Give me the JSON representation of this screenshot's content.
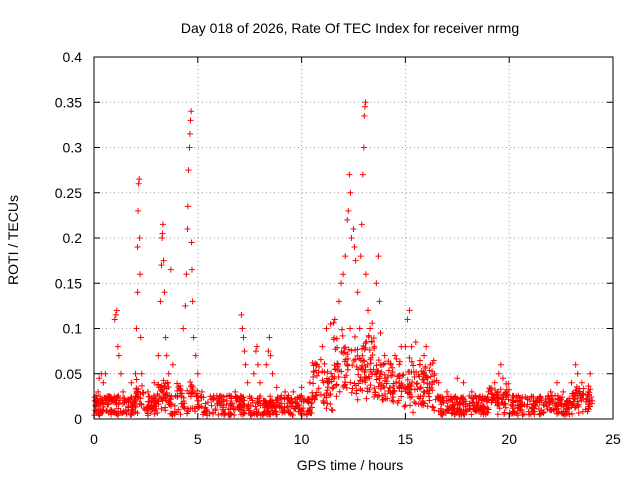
{
  "chart_data": {
    "type": "scatter",
    "title": "Day 018 of 2026, Rate Of TEC Index for receiver nrmg",
    "xlabel": "GPS time / hours",
    "ylabel": "ROTI / TECUs",
    "xlim": [
      0,
      25
    ],
    "ylim": [
      0,
      0.4
    ],
    "x_ticks": [
      0,
      5,
      10,
      15,
      20,
      25
    ],
    "x_tick_labels": [
      "0",
      "5",
      "10",
      "15",
      "20",
      "25"
    ],
    "y_ticks": [
      0,
      0.05,
      0.1,
      0.15,
      0.2,
      0.25,
      0.3,
      0.35,
      0.4
    ],
    "y_tick_labels": [
      "0",
      "0.05",
      "0.1",
      "0.15",
      "0.2",
      "0.25",
      "0.3",
      "0.35",
      "0.4"
    ],
    "grid": true,
    "marker": "+",
    "marker_color": "#ff0000",
    "series": [
      {
        "name": "ROTI",
        "points": [
          [
            0.1,
            0.02
          ],
          [
            0.2,
            0.03
          ],
          [
            0.25,
            0.045
          ],
          [
            0.35,
            0.05
          ],
          [
            0.45,
            0.04
          ],
          [
            0.55,
            0.05
          ],
          [
            0.7,
            0.025
          ],
          [
            1.0,
            0.11
          ],
          [
            1.05,
            0.115
          ],
          [
            1.1,
            0.12
          ],
          [
            1.15,
            0.08
          ],
          [
            1.2,
            0.07
          ],
          [
            1.3,
            0.05
          ],
          [
            1.4,
            0.03
          ],
          [
            1.8,
            0.04
          ],
          [
            2.0,
            0.05
          ],
          [
            2.05,
            0.1
          ],
          [
            2.1,
            0.14
          ],
          [
            2.1,
            0.19
          ],
          [
            2.12,
            0.23
          ],
          [
            2.15,
            0.26
          ],
          [
            2.18,
            0.265
          ],
          [
            2.2,
            0.2
          ],
          [
            2.22,
            0.16
          ],
          [
            2.25,
            0.09
          ],
          [
            2.3,
            0.05
          ],
          [
            2.6,
            0.03
          ],
          [
            2.9,
            0.04
          ],
          [
            3.1,
            0.07
          ],
          [
            3.2,
            0.13
          ],
          [
            3.25,
            0.17
          ],
          [
            3.28,
            0.2
          ],
          [
            3.3,
            0.205
          ],
          [
            3.32,
            0.215
          ],
          [
            3.35,
            0.175
          ],
          [
            3.4,
            0.14
          ],
          [
            3.45,
            0.09
          ],
          [
            3.5,
            0.07
          ],
          [
            3.6,
            0.05
          ],
          [
            3.7,
            0.165
          ],
          [
            3.8,
            0.06
          ],
          [
            4.3,
            0.1
          ],
          [
            4.4,
            0.125
          ],
          [
            4.45,
            0.16
          ],
          [
            4.5,
            0.21
          ],
          [
            4.52,
            0.235
          ],
          [
            4.55,
            0.275
          ],
          [
            4.6,
            0.3
          ],
          [
            4.62,
            0.315
          ],
          [
            4.65,
            0.33
          ],
          [
            4.68,
            0.34
          ],
          [
            4.7,
            0.195
          ],
          [
            4.72,
            0.165
          ],
          [
            4.75,
            0.13
          ],
          [
            4.8,
            0.09
          ],
          [
            4.9,
            0.07
          ],
          [
            5.0,
            0.05
          ],
          [
            5.2,
            0.03
          ],
          [
            5.6,
            0.025
          ],
          [
            6.0,
            0.02
          ],
          [
            6.4,
            0.02
          ],
          [
            6.8,
            0.03
          ],
          [
            7.1,
            0.115
          ],
          [
            7.15,
            0.1
          ],
          [
            7.2,
            0.09
          ],
          [
            7.25,
            0.075
          ],
          [
            7.3,
            0.06
          ],
          [
            7.4,
            0.04
          ],
          [
            7.7,
            0.05
          ],
          [
            7.8,
            0.075
          ],
          [
            7.85,
            0.08
          ],
          [
            7.9,
            0.06
          ],
          [
            8.0,
            0.04
          ],
          [
            8.3,
            0.06
          ],
          [
            8.4,
            0.075
          ],
          [
            8.45,
            0.09
          ],
          [
            8.5,
            0.07
          ],
          [
            8.6,
            0.05
          ],
          [
            8.8,
            0.035
          ],
          [
            9.2,
            0.03
          ],
          [
            9.6,
            0.03
          ],
          [
            10.0,
            0.035
          ],
          [
            10.4,
            0.04
          ],
          [
            10.7,
            0.06
          ],
          [
            11.0,
            0.08
          ],
          [
            11.2,
            0.1
          ],
          [
            11.4,
            0.105
          ],
          [
            11.6,
            0.11
          ],
          [
            11.8,
            0.13
          ],
          [
            11.9,
            0.15
          ],
          [
            12.0,
            0.16
          ],
          [
            12.1,
            0.18
          ],
          [
            12.2,
            0.22
          ],
          [
            12.25,
            0.23
          ],
          [
            12.3,
            0.27
          ],
          [
            12.35,
            0.25
          ],
          [
            12.4,
            0.2
          ],
          [
            12.5,
            0.21
          ],
          [
            12.55,
            0.19
          ],
          [
            12.6,
            0.175
          ],
          [
            12.7,
            0.14
          ],
          [
            12.8,
            0.1
          ],
          [
            12.85,
            0.18
          ],
          [
            12.9,
            0.215
          ],
          [
            12.95,
            0.27
          ],
          [
            13.0,
            0.3
          ],
          [
            13.02,
            0.335
          ],
          [
            13.05,
            0.345
          ],
          [
            13.08,
            0.35
          ],
          [
            13.1,
            0.16
          ],
          [
            13.2,
            0.12
          ],
          [
            13.3,
            0.1
          ],
          [
            13.5,
            0.08
          ],
          [
            13.6,
            0.15
          ],
          [
            13.7,
            0.18
          ],
          [
            13.75,
            0.13
          ],
          [
            13.8,
            0.095
          ],
          [
            14.0,
            0.07
          ],
          [
            14.3,
            0.06
          ],
          [
            14.5,
            0.07
          ],
          [
            14.8,
            0.08
          ],
          [
            15.0,
            0.08
          ],
          [
            15.1,
            0.11
          ],
          [
            15.2,
            0.12
          ],
          [
            15.3,
            0.08
          ],
          [
            15.5,
            0.085
          ],
          [
            15.7,
            0.06
          ],
          [
            15.9,
            0.07
          ],
          [
            16.0,
            0.08
          ],
          [
            16.2,
            0.06
          ],
          [
            16.4,
            0.05
          ],
          [
            16.6,
            0.04
          ],
          [
            17.0,
            0.03
          ],
          [
            17.5,
            0.045
          ],
          [
            17.8,
            0.04
          ],
          [
            18.2,
            0.03
          ],
          [
            18.6,
            0.025
          ],
          [
            19.0,
            0.03
          ],
          [
            19.3,
            0.04
          ],
          [
            19.5,
            0.05
          ],
          [
            19.6,
            0.06
          ],
          [
            19.7,
            0.045
          ],
          [
            19.9,
            0.03
          ],
          [
            20.2,
            0.02
          ],
          [
            20.6,
            0.015
          ],
          [
            21.0,
            0.02
          ],
          [
            21.5,
            0.025
          ],
          [
            22.0,
            0.03
          ],
          [
            22.3,
            0.04
          ],
          [
            22.6,
            0.03
          ],
          [
            23.0,
            0.04
          ],
          [
            23.2,
            0.06
          ],
          [
            23.3,
            0.05
          ],
          [
            23.5,
            0.04
          ],
          [
            23.8,
            0.03
          ],
          [
            23.9,
            0.05
          ],
          [
            24.0,
            0.02
          ]
        ]
      }
    ]
  }
}
